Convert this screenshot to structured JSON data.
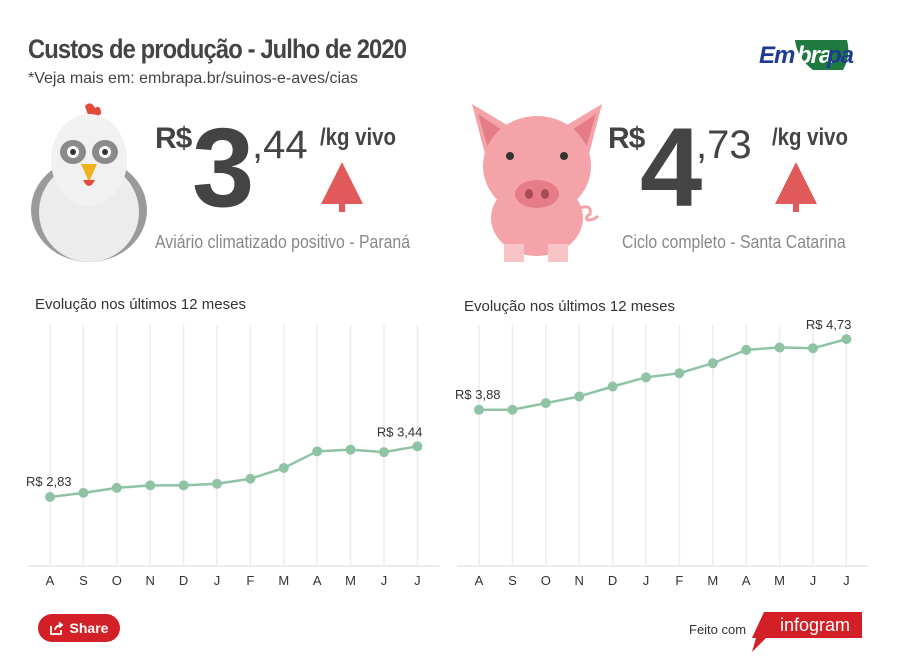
{
  "header": {
    "title": "Custos de produção - Julho de 2020",
    "subtitle": "*Veja mais em: embrapa.br/suinos-e-aves/cias",
    "logo": "Embrapa"
  },
  "colors": {
    "line": "#8fc3a4",
    "arrow": "#e05a5a",
    "accent": "#d31f26",
    "logo_blue": "#1f3a93",
    "logo_green": "#1e7a3f"
  },
  "chicken": {
    "currency": "R$",
    "integer": "3",
    "decimal": ",44",
    "unit": "/kg vivo",
    "trend": "up",
    "location": "Aviário climatizado positivo - Paraná",
    "icon": "chicken-illustration"
  },
  "pig": {
    "currency": "R$",
    "integer": "4",
    "decimal": ",73",
    "unit": "/kg vivo",
    "trend": "up",
    "location": "Ciclo completo - Santa Catarina",
    "icon": "pig-illustration"
  },
  "chart_data": [
    {
      "type": "line",
      "title": "Evolução nos últimos 12 meses",
      "categories": [
        "A",
        "S",
        "O",
        "N",
        "D",
        "J",
        "F",
        "M",
        "A",
        "M",
        "J",
        "J"
      ],
      "values": [
        2.83,
        2.88,
        2.94,
        2.97,
        2.97,
        2.99,
        3.05,
        3.18,
        3.38,
        3.4,
        3.37,
        3.44
      ],
      "data_labels": {
        "first": "R$ 2,83",
        "last": "R$ 3,44"
      },
      "ylim": [
        2,
        4.9
      ],
      "grid": "vertical"
    },
    {
      "type": "line",
      "title": "Evolução nos últimos 12 meses",
      "categories": [
        "A",
        "S",
        "O",
        "N",
        "D",
        "J",
        "F",
        "M",
        "A",
        "M",
        "J",
        "J"
      ],
      "values": [
        3.88,
        3.88,
        3.96,
        4.04,
        4.16,
        4.27,
        4.32,
        4.44,
        4.6,
        4.63,
        4.62,
        4.73
      ],
      "data_labels": {
        "first": "R$ 3,88",
        "last": "R$ 4,73"
      },
      "ylim": [
        2,
        4.9
      ],
      "grid": "vertical"
    }
  ],
  "footer": {
    "share_label": "Share",
    "made_with": "Feito com",
    "brand": "infogram"
  }
}
